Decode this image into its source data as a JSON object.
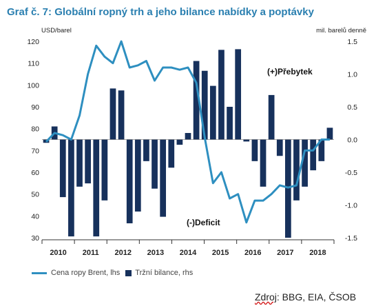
{
  "title": "Graf č. 7: Globální ropný trh a jeho bilance nabídky a poptávky",
  "source": {
    "label": "Zdroj",
    "rest": ": BBG, EIA, ČSOB"
  },
  "legend": {
    "line_label": "Cena ropy Brent, lhs",
    "bar_label": "Tržní bilance, rhs"
  },
  "annotations": {
    "surplus": "(+)Přebytek",
    "deficit": "(-)Deficit"
  },
  "colors": {
    "line": "#2e8fc0",
    "bar": "#17315c",
    "text": "#222222",
    "title": "#2a7fb0"
  },
  "chart_data": {
    "type": "bar+line",
    "left_axis": {
      "label": "USD/barel",
      "range": [
        30,
        120
      ],
      "ticks": [
        30,
        40,
        50,
        60,
        70,
        80,
        90,
        100,
        110,
        120
      ]
    },
    "right_axis": {
      "label": "mil. barelů denně",
      "range": [
        -1.5,
        1.5
      ],
      "ticks": [
        -1.5,
        -1.0,
        -0.5,
        0.0,
        0.5,
        1.0,
        1.5
      ],
      "tick_labels": [
        "-1.5",
        "-1.0",
        "-0.5",
        "0.0",
        "0.5",
        "1.0",
        "1.5"
      ]
    },
    "years": [
      "2010",
      "2011",
      "2012",
      "2013",
      "2014",
      "2015",
      "2016",
      "2017",
      "2018"
    ],
    "series": [
      {
        "name": "Tržní bilance, rhs",
        "type": "bar",
        "axis": "right",
        "values": [
          -0.05,
          0.2,
          -0.88,
          -1.48,
          -0.72,
          -0.67,
          -1.48,
          -0.93,
          0.78,
          0.75,
          -1.28,
          -1.1,
          -0.33,
          -0.75,
          -1.18,
          -0.43,
          -0.08,
          0.1,
          1.2,
          1.05,
          0.82,
          1.37,
          0.5,
          1.38,
          -0.03,
          -0.33,
          -0.72,
          0.68,
          -0.25,
          -1.5,
          -0.93,
          -0.72,
          -0.47,
          -0.33,
          0.18
        ]
      },
      {
        "name": "Cena ropy Brent, lhs",
        "type": "line",
        "axis": "left",
        "values": [
          74,
          78,
          77,
          75,
          86,
          105,
          118,
          113,
          110,
          120,
          108,
          109,
          111,
          102,
          108,
          108,
          107,
          108,
          101,
          76,
          55,
          60,
          48,
          50,
          37,
          47,
          47,
          50,
          54,
          53,
          54,
          70,
          70,
          75,
          75
        ]
      }
    ]
  }
}
